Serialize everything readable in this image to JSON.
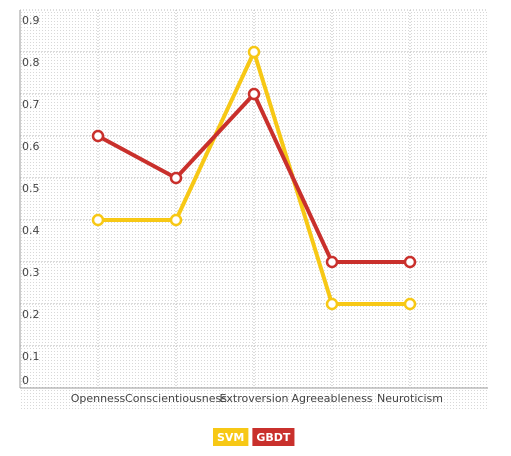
{
  "chart_data": {
    "type": "line",
    "categories": [
      "Openness",
      "Conscientiousness",
      "Extroversion",
      "Agreeableness",
      "Neuroticism"
    ],
    "series": [
      {
        "name": "SVM",
        "color": "#f7c815",
        "values": [
          0.4,
          0.4,
          0.8,
          0.2,
          0.2
        ]
      },
      {
        "name": "GBDT",
        "color": "#c9302c",
        "values": [
          0.6,
          0.5,
          0.7,
          0.3,
          0.3
        ]
      }
    ],
    "ylim": [
      0,
      0.9
    ],
    "yticks": [
      0,
      0.1,
      0.2,
      0.3,
      0.4,
      0.5,
      0.6,
      0.7,
      0.8,
      0.9
    ],
    "grid": true
  }
}
